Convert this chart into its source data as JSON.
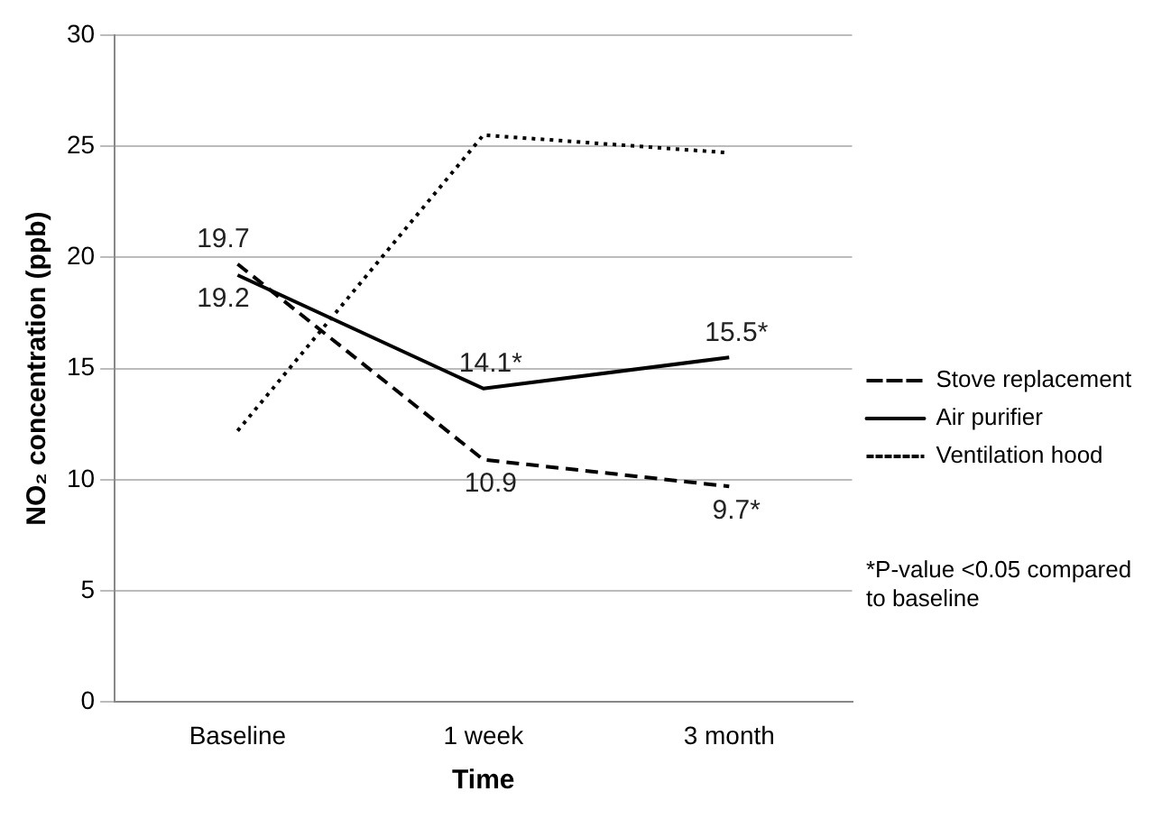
{
  "chart_data": {
    "type": "line",
    "xlabel": "Time",
    "ylabel": "NO₂ concentration (ppb)",
    "categories": [
      "Baseline",
      "1 week",
      "3 month"
    ],
    "series": [
      {
        "name": "Stove replacement",
        "color": "#000000",
        "line_style": "dashed",
        "values": [
          19.7,
          10.9,
          9.7
        ],
        "value_labels": [
          "19.7",
          "10.9",
          "9.7*"
        ]
      },
      {
        "name": "Air purifier",
        "color": "#000000",
        "line_style": "solid",
        "values": [
          19.2,
          14.1,
          15.5
        ],
        "value_labels": [
          "19.2",
          "14.1*",
          "15.5*"
        ]
      },
      {
        "name": "Ventilation hood",
        "color": "#000000",
        "line_style": "dotted",
        "values": [
          12.2,
          25.5,
          24.7
        ]
      }
    ],
    "ylim": [
      0,
      30
    ],
    "yticks": [
      0,
      5,
      10,
      15,
      20,
      25,
      30
    ],
    "grid": "y",
    "legend": "right",
    "marker": "none",
    "annotations": [
      "*P-value <0.05 compared to baseline"
    ]
  }
}
